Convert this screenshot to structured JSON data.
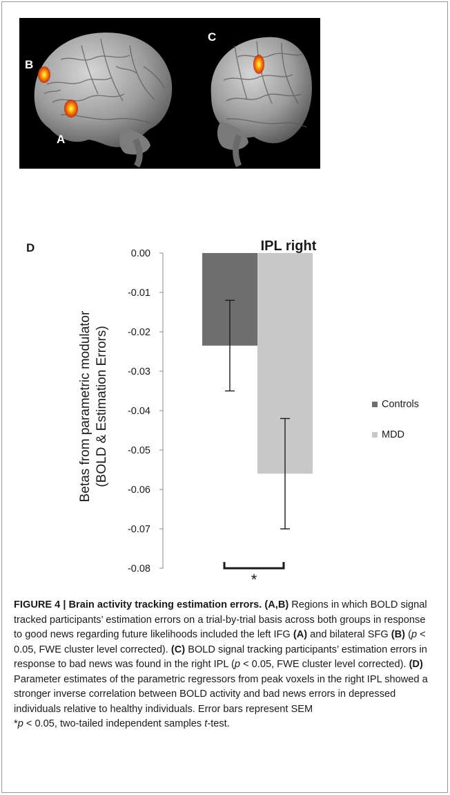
{
  "brain_panel": {
    "labels": {
      "a": "A",
      "b": "B",
      "c": "C"
    },
    "background": "#000000",
    "activation_color": "#ff7a00"
  },
  "chart_data": {
    "type": "bar",
    "panel_label": "D",
    "title": "IPL right",
    "ylabel_line1": "Betas from parametric modulator",
    "ylabel_line2": "(BOLD & Estimation Errors)",
    "ylim": [
      -0.08,
      0.0
    ],
    "yticks": [
      "0.00",
      "-0.01",
      "-0.02",
      "-0.03",
      "-0.04",
      "-0.05",
      "-0.06",
      "-0.07",
      "-0.08"
    ],
    "ytick_values": [
      0.0,
      -0.01,
      -0.02,
      -0.03,
      -0.04,
      -0.05,
      -0.06,
      -0.07,
      -0.08
    ],
    "series": [
      {
        "name": "Controls",
        "value": -0.0235,
        "err_low": -0.035,
        "err_high": -0.012,
        "color": "#6e6e6e"
      },
      {
        "name": "MDD",
        "value": -0.056,
        "err_low": -0.07,
        "err_high": -0.042,
        "color": "#c8c8c8"
      }
    ],
    "significance": "*",
    "grid": false,
    "legend_placement": "right"
  },
  "caption": {
    "label": "FIGURE 4 | Brain activity tracking estimation errors.",
    "ab_ref": "(A,B)",
    "t1": " Regions in which BOLD signal tracked participants’ estimation errors on a trial-by-trial basis across both groups in response to good news regarding future likelihoods included the left IFG ",
    "a_ref": "(A)",
    "t2": " and bilateral SFG ",
    "b_ref": "(B)",
    "t3": " (",
    "p1": "p",
    "t4": " < 0.05, FWE cluster level corrected). ",
    "c_ref": "(C)",
    "t5": " BOLD signal tracking participants’ estimation errors in response to bad news was found in the right IPL (",
    "p2": "p",
    "t6": " < 0.05, FWE cluster level corrected). ",
    "d_ref": "(D)",
    "t7": " Parameter estimates of the parametric regressors from peak voxels in the right IPL showed a stronger inverse correlation between BOLD activity and bad news errors in depressed individuals relative to healthy individuals. Error bars represent SEM ",
    "star": "*",
    "p3": "p",
    "t8": " < 0.05, two-tailed independent samples ",
    "t_ital": "t",
    "t9": "-test."
  }
}
